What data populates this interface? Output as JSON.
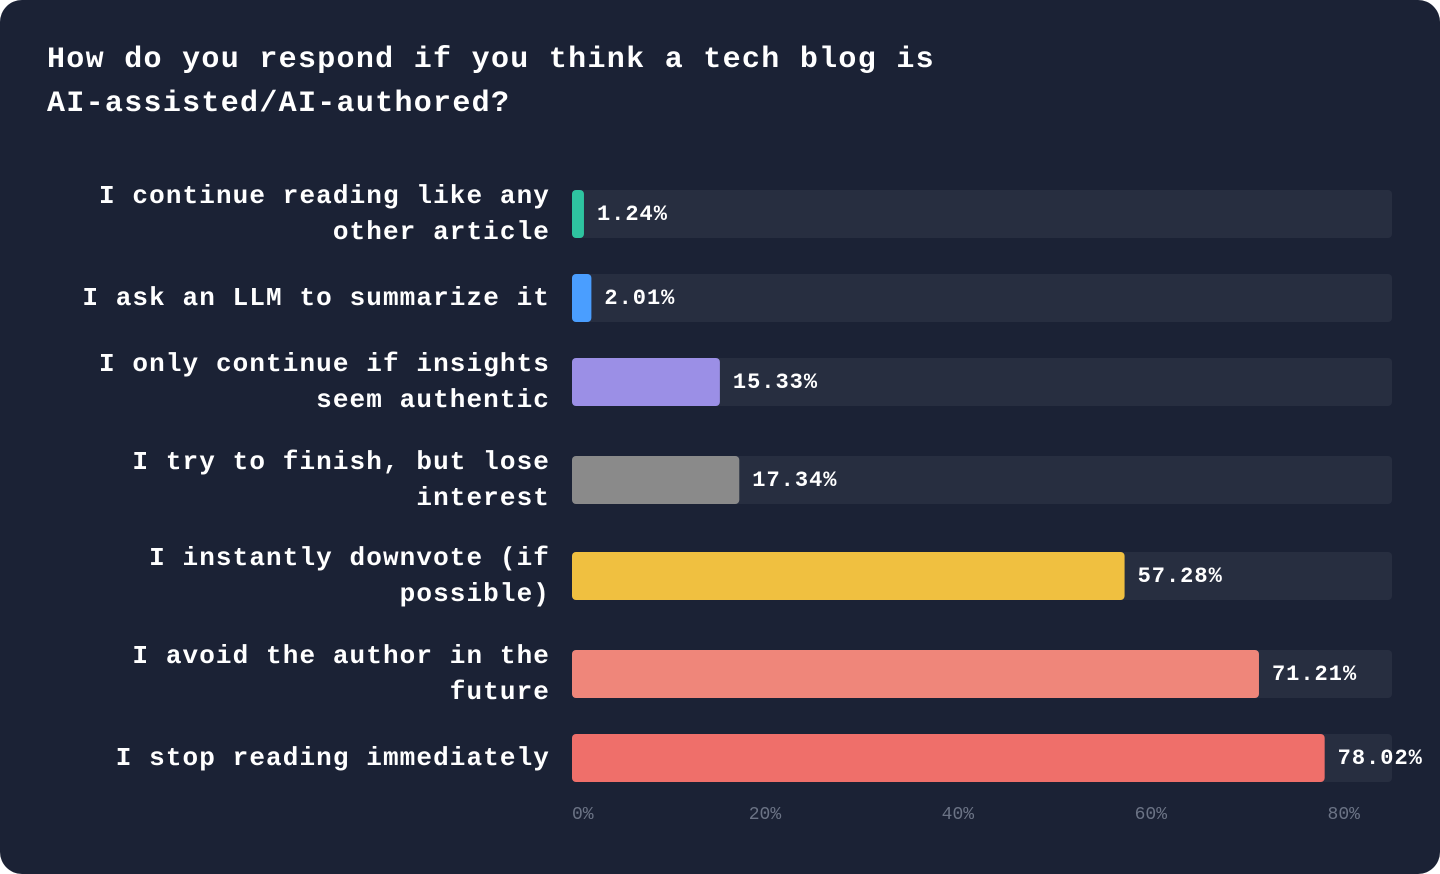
{
  "chart_data": {
    "type": "hbar",
    "title": "How do you respond if you think a tech blog is AI-assisted/AI-authored?",
    "categories": [
      "I continue reading like any other article",
      "I ask an LLM to summarize it",
      "I only continue if insights seem authentic",
      "I try to finish, but lose interest",
      "I instantly downvote (if possible)",
      "I avoid the author in the future",
      "I stop reading immediately"
    ],
    "values": [
      1.24,
      2.01,
      15.33,
      17.34,
      57.28,
      71.21,
      78.02
    ],
    "value_labels": [
      "1.24%",
      "2.01%",
      "15.33%",
      "17.34%",
      "57.28%",
      "71.21%",
      "78.02%"
    ],
    "colors": [
      "#2ec4a0",
      "#4a9eff",
      "#9b8fe6",
      "#8a8a8a",
      "#f0c040",
      "#ef867a",
      "#ef6f6a"
    ],
    "xlim": [
      0,
      85
    ],
    "xticks": [
      {
        "value": 0,
        "label": "0%"
      },
      {
        "value": 20,
        "label": "20%"
      },
      {
        "value": 40,
        "label": "40%"
      },
      {
        "value": 60,
        "label": "60%"
      },
      {
        "value": 80,
        "label": "80%"
      }
    ]
  }
}
